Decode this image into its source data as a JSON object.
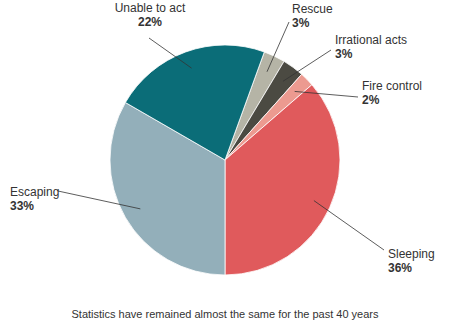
{
  "chart_data": {
    "type": "pie",
    "subtitle": "Statistics have remained almost the same for the past 40 years",
    "categories": [
      "Rescue",
      "Irrational acts",
      "Fire control",
      "Sleeping",
      "Escaping",
      "Unable to act"
    ],
    "values": [
      3,
      3,
      2,
      36,
      33,
      22
    ],
    "value_labels": [
      "3%",
      "3%",
      "2%",
      "36%",
      "33%",
      "22%"
    ],
    "colors": [
      "#b5b4a6",
      "#4b4a42",
      "#ec9a90",
      "#e05a5c",
      "#93afba",
      "#0b6d78"
    ],
    "data_labels": true
  }
}
